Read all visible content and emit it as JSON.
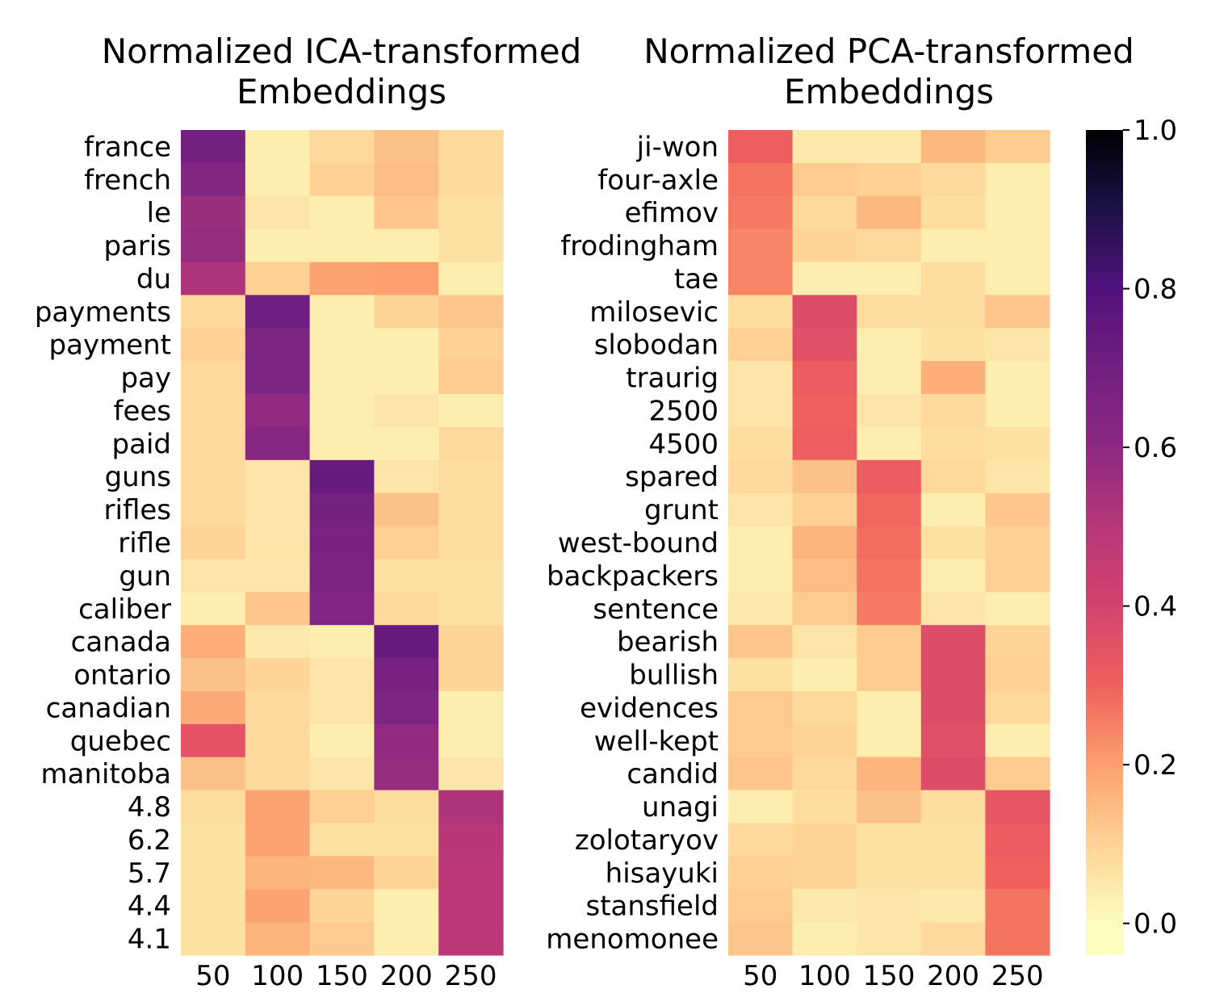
{
  "chart_data": [
    {
      "type": "heatmap",
      "title_lines": [
        "Normalized ICA-transformed",
        "Embeddings"
      ],
      "columns": [
        "50",
        "100",
        "150",
        "200",
        "250"
      ],
      "rows": [
        "france",
        "french",
        "le",
        "paris",
        "du",
        "payments",
        "payment",
        "pay",
        "fees",
        "paid",
        "guns",
        "rifles",
        "rifle",
        "gun",
        "caliber",
        "canada",
        "ontario",
        "canadian",
        "quebec",
        "manitoba",
        "4.8",
        "6.2",
        "5.7",
        "4.4",
        "4.1"
      ],
      "values": [
        [
          0.68,
          0.0,
          0.05,
          0.1,
          0.05
        ],
        [
          0.62,
          0.0,
          0.07,
          0.11,
          0.05
        ],
        [
          0.55,
          0.02,
          0.0,
          0.09,
          0.03
        ],
        [
          0.56,
          0.0,
          0.0,
          0.0,
          0.03
        ],
        [
          0.5,
          0.07,
          0.16,
          0.17,
          0.0
        ],
        [
          0.05,
          0.7,
          0.0,
          0.06,
          0.09
        ],
        [
          0.07,
          0.64,
          0.0,
          0.0,
          0.07
        ],
        [
          0.05,
          0.64,
          0.0,
          0.0,
          0.08
        ],
        [
          0.05,
          0.57,
          0.0,
          0.02,
          0.0
        ],
        [
          0.05,
          0.6,
          0.0,
          0.0,
          0.05
        ],
        [
          0.05,
          0.02,
          0.72,
          0.02,
          0.04
        ],
        [
          0.05,
          0.02,
          0.67,
          0.1,
          0.04
        ],
        [
          0.06,
          0.02,
          0.66,
          0.07,
          0.04
        ],
        [
          0.02,
          0.02,
          0.65,
          0.03,
          0.03
        ],
        [
          0.0,
          0.09,
          0.63,
          0.05,
          0.03
        ],
        [
          0.14,
          0.01,
          0.0,
          0.72,
          0.06
        ],
        [
          0.1,
          0.06,
          0.02,
          0.66,
          0.06
        ],
        [
          0.15,
          0.05,
          0.02,
          0.64,
          0.0
        ],
        [
          0.32,
          0.05,
          0.0,
          0.57,
          0.0
        ],
        [
          0.1,
          0.05,
          0.02,
          0.56,
          0.02
        ],
        [
          0.04,
          0.16,
          0.07,
          0.04,
          0.5
        ],
        [
          0.03,
          0.16,
          0.03,
          0.03,
          0.48
        ],
        [
          0.03,
          0.13,
          0.12,
          0.06,
          0.47
        ],
        [
          0.03,
          0.16,
          0.06,
          0.0,
          0.47
        ],
        [
          0.03,
          0.13,
          0.08,
          0.0,
          0.46
        ]
      ],
      "vmin": -0.04,
      "vmax": 1.0,
      "colormap": "magma_r"
    },
    {
      "type": "heatmap",
      "title_lines": [
        "Normalized PCA-transformed",
        "Embeddings"
      ],
      "columns": [
        "50",
        "100",
        "150",
        "200",
        "250"
      ],
      "rows": [
        "ji-won",
        "four-axle",
        "efimov",
        "frodingham",
        "tae",
        "milosevic",
        "slobodan",
        "traurig",
        "2500",
        "4500",
        "spared",
        "grunt",
        "west-bound",
        "backpackers",
        "sentence",
        "bearish",
        "bullish",
        "evidences",
        "well-kept",
        "candid",
        "unagi",
        "zolotaryov",
        "hisayuki",
        "stansfield",
        "menomonee"
      ],
      "values": [
        [
          0.28,
          0.01,
          0.01,
          0.12,
          0.08
        ],
        [
          0.24,
          0.08,
          0.07,
          0.05,
          0.0
        ],
        [
          0.23,
          0.05,
          0.12,
          0.04,
          0.0
        ],
        [
          0.21,
          0.06,
          0.05,
          0.0,
          0.0
        ],
        [
          0.21,
          0.0,
          0.0,
          0.04,
          0.0
        ],
        [
          0.04,
          0.34,
          0.04,
          0.04,
          0.09
        ],
        [
          0.07,
          0.33,
          0.0,
          0.03,
          0.02
        ],
        [
          0.02,
          0.29,
          0.0,
          0.14,
          0.0
        ],
        [
          0.02,
          0.27,
          0.02,
          0.05,
          0.0
        ],
        [
          0.04,
          0.28,
          0.0,
          0.04,
          0.03
        ],
        [
          0.05,
          0.1,
          0.29,
          0.05,
          0.02
        ],
        [
          0.02,
          0.07,
          0.26,
          0.0,
          0.09
        ],
        [
          0.0,
          0.13,
          0.25,
          0.03,
          0.07
        ],
        [
          0.0,
          0.11,
          0.24,
          0.0,
          0.07
        ],
        [
          0.01,
          0.08,
          0.23,
          0.02,
          0.0
        ],
        [
          0.09,
          0.02,
          0.08,
          0.34,
          0.06
        ],
        [
          0.03,
          0.0,
          0.08,
          0.34,
          0.07
        ],
        [
          0.08,
          0.05,
          0.0,
          0.34,
          0.05
        ],
        [
          0.08,
          0.06,
          0.0,
          0.33,
          0.0
        ],
        [
          0.09,
          0.05,
          0.13,
          0.34,
          0.08
        ],
        [
          0.0,
          0.04,
          0.1,
          0.04,
          0.31
        ],
        [
          0.05,
          0.06,
          0.03,
          0.03,
          0.29
        ],
        [
          0.07,
          0.06,
          0.03,
          0.03,
          0.27
        ],
        [
          0.08,
          0.01,
          0.02,
          0.01,
          0.24
        ],
        [
          0.09,
          0.0,
          0.02,
          0.05,
          0.24
        ]
      ],
      "vmin": -0.04,
      "vmax": 1.0,
      "colormap": "magma_r"
    }
  ],
  "colorbar": {
    "vmin": -0.04,
    "vmax": 1.0,
    "ticks": [
      0.0,
      0.2,
      0.4,
      0.6,
      0.8,
      1.0
    ],
    "tick_labels": [
      "0.0",
      "0.2",
      "0.4",
      "0.6",
      "0.8",
      "1.0"
    ]
  }
}
